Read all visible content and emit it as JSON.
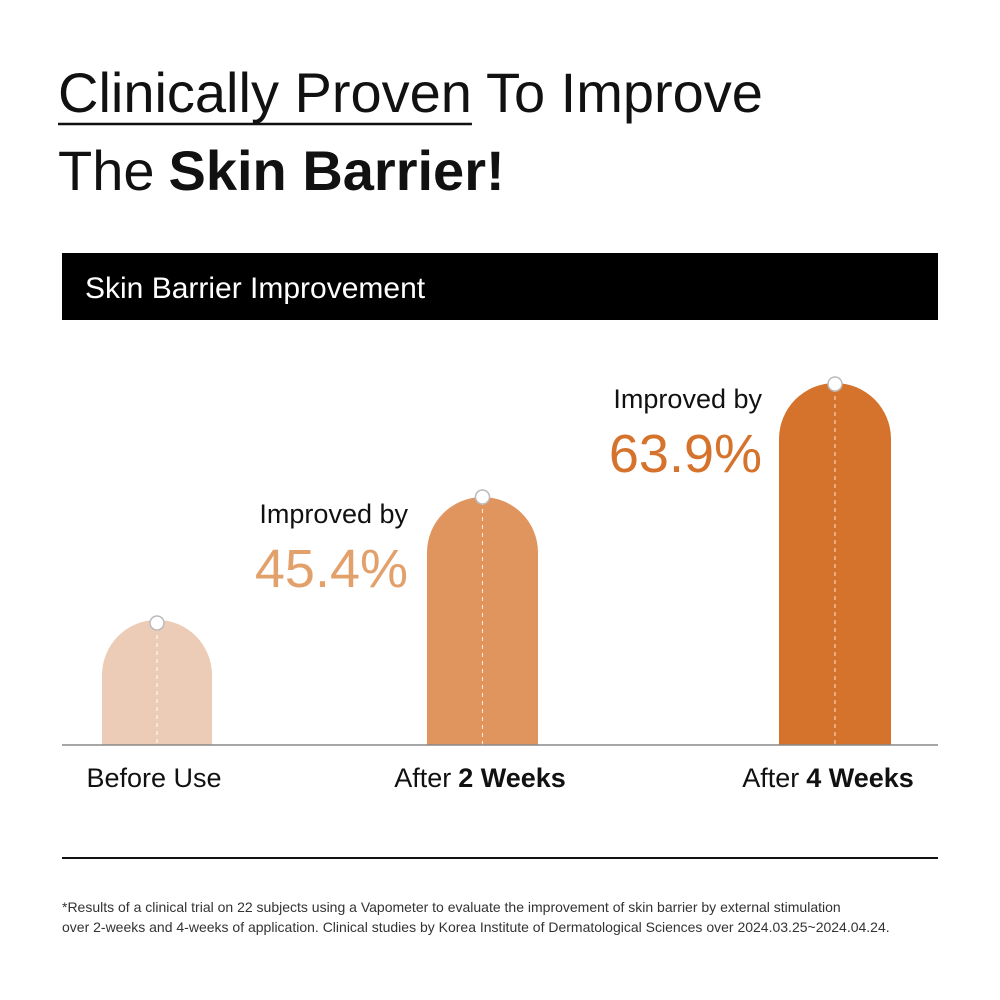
{
  "header": {
    "underlined": "Clinically Proven",
    "line1_rest": "To Improve",
    "line2_plain": "The",
    "line2_bold": "Skin Barrier!"
  },
  "section_title": "Skin Barrier Improvement",
  "columns": [
    {
      "label_plain": "Before Use"
    },
    {
      "label_plain": "After",
      "label_bold": "2 Weeks",
      "note": "Improved by",
      "percent": "45.4%"
    },
    {
      "label_plain": "After",
      "label_bold": "4 Weeks",
      "note": "Improved by",
      "percent": "63.9%"
    }
  ],
  "footnote": [
    "*Results of a clinical trial on 22 subjects using a Vapometer to evaluate the improvement of skin barrier by external stimulation",
    "over 2-weeks and 4-weeks of application. Clinical studies by Korea Institute of Dermatological Sciences over 2024.03.25~2024.04.24."
  ]
}
